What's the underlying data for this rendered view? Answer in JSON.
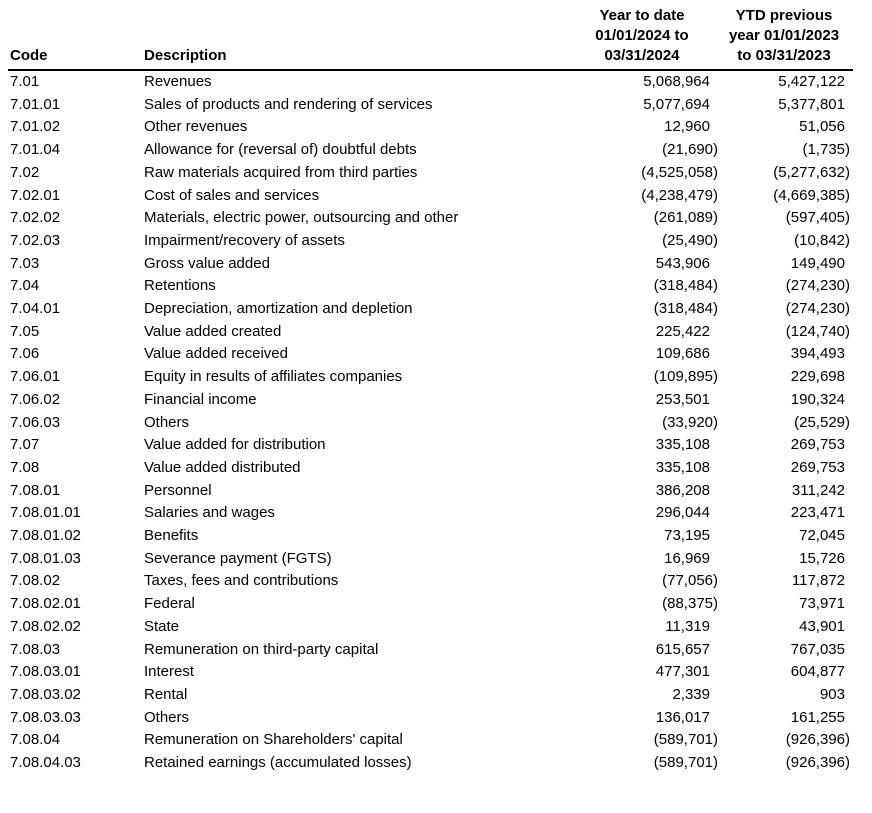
{
  "colors": {
    "background": "#ffffff",
    "text": "#000000",
    "header_rule": "#000000"
  },
  "table": {
    "headers": {
      "code": "Code",
      "description": "Description",
      "col_2024": "Year to date\n01/01/2024 to\n03/31/2024",
      "col_2023": "YTD previous\nyear 01/01/2023\nto 03/31/2023"
    },
    "rows": [
      {
        "code": "7.01",
        "description": "Revenues",
        "ytd_2024": "5,068,964",
        "ytd_2023": "5,427,122"
      },
      {
        "code": "7.01.01",
        "description": "Sales of products and rendering of services",
        "ytd_2024": "5,077,694",
        "ytd_2023": "5,377,801"
      },
      {
        "code": "7.01.02",
        "description": "Other revenues",
        "ytd_2024": "12,960",
        "ytd_2023": "51,056"
      },
      {
        "code": "7.01.04",
        "description": "Allowance for (reversal of) doubtful debts",
        "ytd_2024": "(21,690)",
        "ytd_2023": "(1,735)"
      },
      {
        "code": "7.02",
        "description": "Raw materials acquired from third parties",
        "ytd_2024": "(4,525,058)",
        "ytd_2023": "(5,277,632)"
      },
      {
        "code": "7.02.01",
        "description": "Cost of sales and services",
        "ytd_2024": "(4,238,479)",
        "ytd_2023": "(4,669,385)"
      },
      {
        "code": "7.02.02",
        "description": "Materials, electric power, outsourcing and other",
        "ytd_2024": "(261,089)",
        "ytd_2023": "(597,405)"
      },
      {
        "code": "7.02.03",
        "description": "Impairment/recovery of assets",
        "ytd_2024": "(25,490)",
        "ytd_2023": "(10,842)"
      },
      {
        "code": "7.03",
        "description": "Gross value added",
        "ytd_2024": "543,906",
        "ytd_2023": "149,490"
      },
      {
        "code": "7.04",
        "description": "Retentions",
        "ytd_2024": "(318,484)",
        "ytd_2023": "(274,230)"
      },
      {
        "code": "7.04.01",
        "description": "Depreciation, amortization and depletion",
        "ytd_2024": "(318,484)",
        "ytd_2023": "(274,230)"
      },
      {
        "code": "7.05",
        "description": "Value added created",
        "ytd_2024": "225,422",
        "ytd_2023": "(124,740)"
      },
      {
        "code": "7.06",
        "description": "Value added received",
        "ytd_2024": "109,686",
        "ytd_2023": "394,493"
      },
      {
        "code": "7.06.01",
        "description": "Equity in results of affiliates companies",
        "ytd_2024": "(109,895)",
        "ytd_2023": "229,698"
      },
      {
        "code": "7.06.02",
        "description": "Financial income",
        "ytd_2024": "253,501",
        "ytd_2023": "190,324"
      },
      {
        "code": "7.06.03",
        "description": "Others",
        "ytd_2024": "(33,920)",
        "ytd_2023": "(25,529)"
      },
      {
        "code": "7.07",
        "description": "Value added for distribution",
        "ytd_2024": "335,108",
        "ytd_2023": "269,753"
      },
      {
        "code": "7.08",
        "description": "Value added distributed",
        "ytd_2024": "335,108",
        "ytd_2023": "269,753"
      },
      {
        "code": "7.08.01",
        "description": "Personnel",
        "ytd_2024": "386,208",
        "ytd_2023": "311,242"
      },
      {
        "code": "7.08.01.01",
        "description": "Salaries and wages",
        "ytd_2024": "296,044",
        "ytd_2023": "223,471"
      },
      {
        "code": "7.08.01.02",
        "description": "Benefits",
        "ytd_2024": "73,195",
        "ytd_2023": "72,045"
      },
      {
        "code": "7.08.01.03",
        "description": "Severance payment (FGTS)",
        "ytd_2024": "16,969",
        "ytd_2023": "15,726"
      },
      {
        "code": "7.08.02",
        "description": "Taxes, fees and contributions",
        "ytd_2024": "(77,056)",
        "ytd_2023": "117,872"
      },
      {
        "code": "7.08.02.01",
        "description": "Federal",
        "ytd_2024": "(88,375)",
        "ytd_2023": "73,971"
      },
      {
        "code": "7.08.02.02",
        "description": "State",
        "ytd_2024": "11,319",
        "ytd_2023": "43,901"
      },
      {
        "code": "7.08.03",
        "description": "Remuneration on third-party capital",
        "ytd_2024": "615,657",
        "ytd_2023": "767,035"
      },
      {
        "code": "7.08.03.01",
        "description": "Interest",
        "ytd_2024": "477,301",
        "ytd_2023": "604,877"
      },
      {
        "code": "7.08.03.02",
        "description": "Rental",
        "ytd_2024": "2,339",
        "ytd_2023": "903"
      },
      {
        "code": "7.08.03.03",
        "description": "Others",
        "ytd_2024": "136,017",
        "ytd_2023": "161,255"
      },
      {
        "code": "7.08.04",
        "description": "Remuneration on Shareholders' capital",
        "ytd_2024": "(589,701)",
        "ytd_2023": "(926,396)"
      },
      {
        "code": "7.08.04.03",
        "description": "Retained earnings (accumulated losses)",
        "ytd_2024": "(589,701)",
        "ytd_2023": "(926,396)"
      }
    ]
  }
}
